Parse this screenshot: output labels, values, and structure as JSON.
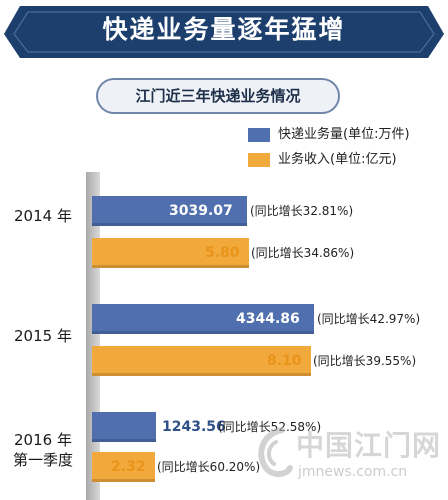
{
  "banner": {
    "title": "快递业务量逐年猛增"
  },
  "subtitle": "江门近三年快递业务情况",
  "legend": [
    {
      "label": "快递业务量(单位:万件)",
      "color": "#4f6fae"
    },
    {
      "label": "业务收入(单位:亿元)",
      "color": "#f2a93b"
    }
  ],
  "colors": {
    "banner": "#1c3f6e",
    "volume": "#4f6fae",
    "revenue": "#f2a93b",
    "revenue_text": "#e8941a",
    "volume_text": "#ffffff"
  },
  "chart_data": {
    "type": "bar",
    "orientation": "horizontal",
    "categories": [
      "2014 年",
      "2015 年",
      "2016 年\n第一季度"
    ],
    "series": [
      {
        "name": "快递业务量(单位:万件)",
        "values": [
          3039.07,
          4344.86,
          1243.56
        ],
        "value_labels": [
          "3039.07",
          "4344.86",
          "1243.56"
        ],
        "notes": [
          "(同比增长32.81%)",
          "(同比增长42.97%)",
          "(同比增长52.58%)"
        ]
      },
      {
        "name": "业务收入(单位:亿元)",
        "values": [
          5.8,
          8.1,
          2.32
        ],
        "value_labels": [
          "5.80",
          "8.10",
          "2.32"
        ],
        "notes": [
          "(同比增长34.86%)",
          "(同比增长39.55%)",
          "(同比增长60.20%)"
        ]
      }
    ],
    "xlim_volume": [
      0,
      4500
    ],
    "xlim_revenue": [
      0,
      8.5
    ],
    "grid": false,
    "legend_position": "top-right"
  },
  "watermark": {
    "name": "中国江门网",
    "url": "jmnews.com.cn"
  }
}
